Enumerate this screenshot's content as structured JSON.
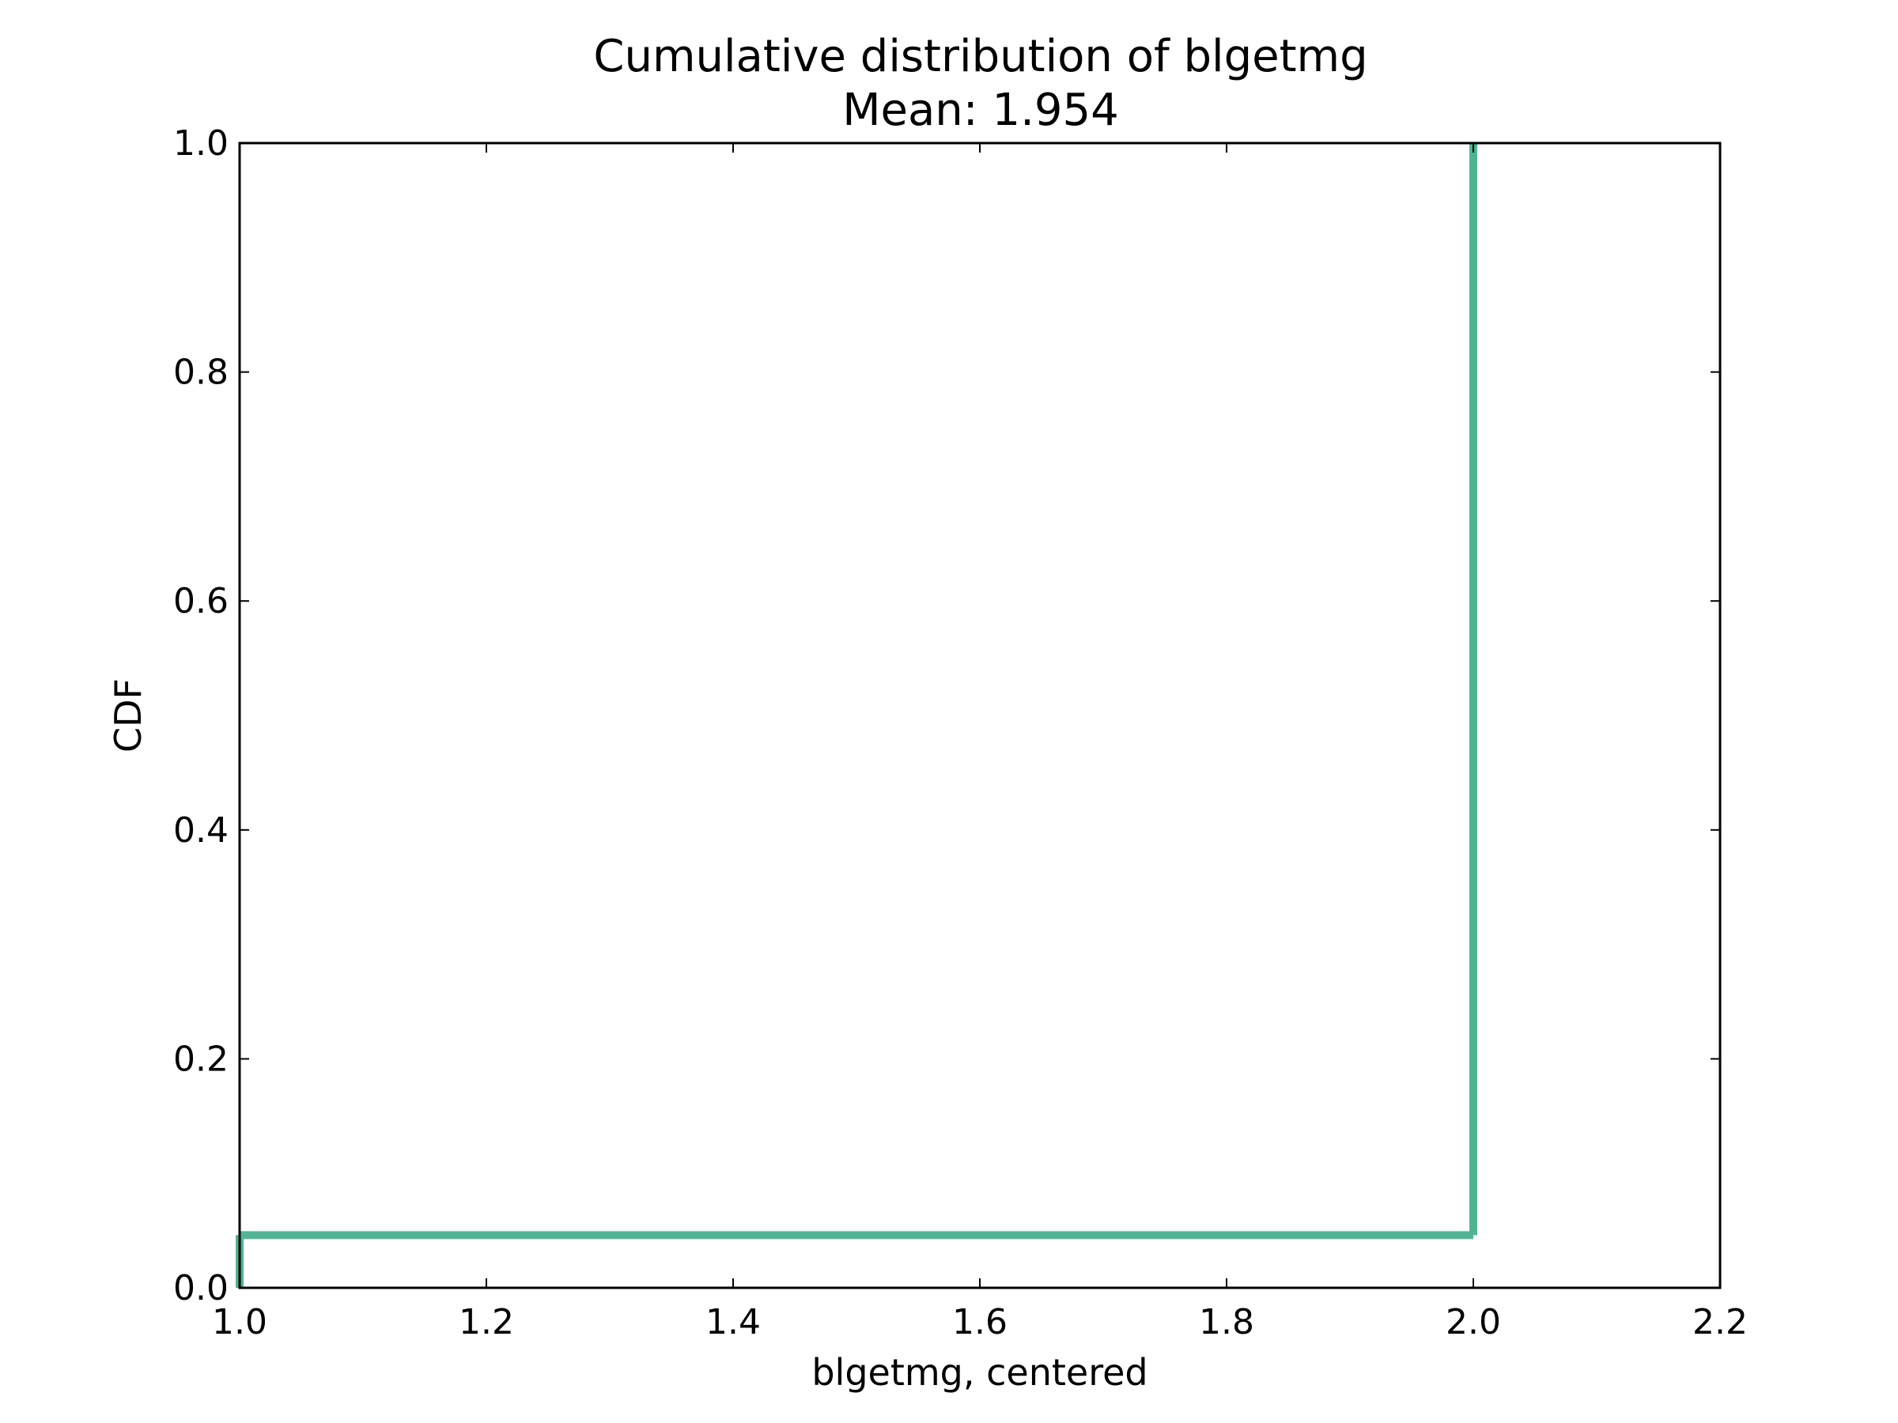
{
  "chart_data": {
    "type": "line",
    "title": "Cumulative distribution of blgetmg",
    "subtitle": "Mean: 1.954",
    "xlabel": "blgetmg, centered",
    "ylabel": "CDF",
    "xlim": [
      1.0,
      2.2
    ],
    "ylim": [
      0.0,
      1.0
    ],
    "x_ticks": [
      "1.0",
      "1.2",
      "1.4",
      "1.6",
      "1.8",
      "2.0",
      "2.2"
    ],
    "y_ticks": [
      "0.0",
      "0.2",
      "0.4",
      "0.6",
      "0.8",
      "1.0"
    ],
    "grid": false,
    "series": [
      {
        "step": true,
        "color": "#52b394",
        "x": [
          1.0,
          1.0,
          2.0,
          2.0
        ],
        "y": [
          0.0,
          0.046,
          0.046,
          1.0
        ]
      }
    ]
  }
}
